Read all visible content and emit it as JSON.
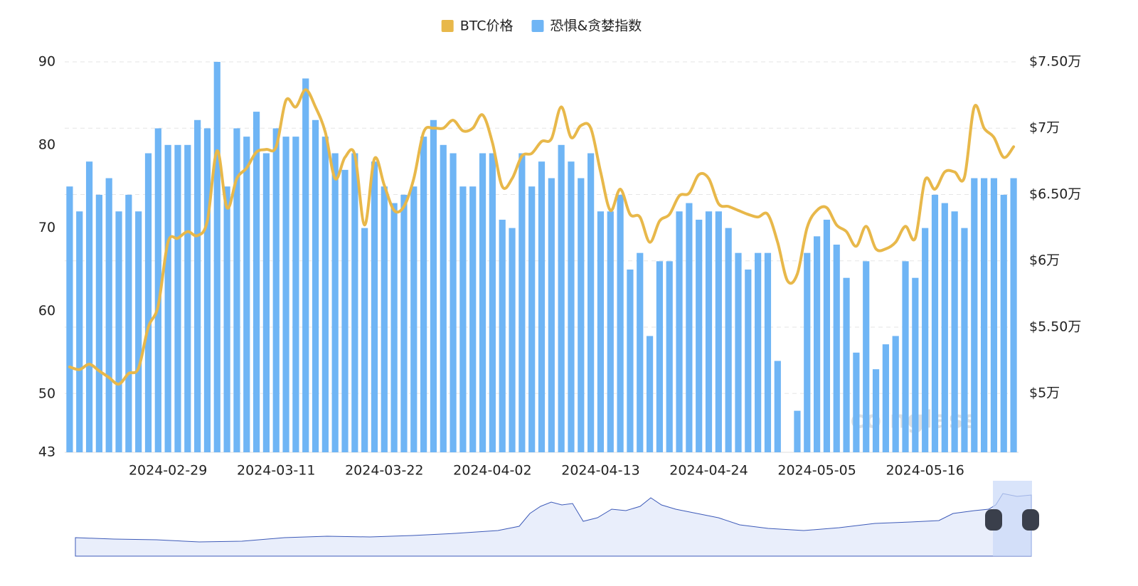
{
  "chart_data": {
    "type": "bar-line",
    "watermark": "coinglass",
    "categories": [
      null,
      null,
      null,
      null,
      null,
      null,
      null,
      null,
      null,
      null,
      "2024-02-29",
      null,
      null,
      null,
      null,
      null,
      null,
      null,
      null,
      null,
      null,
      "2024-03-11",
      null,
      null,
      null,
      null,
      null,
      null,
      null,
      null,
      null,
      null,
      "2024-03-22",
      null,
      null,
      null,
      null,
      null,
      null,
      null,
      null,
      null,
      null,
      "2024-04-02",
      null,
      null,
      null,
      null,
      null,
      null,
      null,
      null,
      null,
      null,
      "2024-04-13",
      null,
      null,
      null,
      null,
      null,
      null,
      null,
      null,
      null,
      null,
      "2024-04-24",
      null,
      null,
      null,
      null,
      null,
      null,
      null,
      null,
      null,
      null,
      "2024-05-05",
      null,
      null,
      null,
      null,
      null,
      null,
      null,
      null,
      null,
      null,
      "2024-05-16",
      null,
      null,
      null,
      null,
      null,
      null,
      null,
      null,
      null
    ],
    "series": [
      {
        "name": "BTC价格",
        "type": "line",
        "axis": "y2",
        "color": "#e8b84a",
        "values": [
          52000,
          51800,
          52200,
          51700,
          51200,
          50700,
          51500,
          51900,
          55000,
          56600,
          61400,
          61700,
          62200,
          61900,
          63000,
          68300,
          64000,
          66200,
          67000,
          68200,
          68400,
          68600,
          72100,
          71600,
          72900,
          71600,
          69700,
          66200,
          67800,
          68000,
          62700,
          67700,
          65700,
          63800,
          64100,
          66200,
          69700,
          70000,
          70000,
          70600,
          69800,
          70000,
          71000,
          68900,
          65600,
          66200,
          67900,
          68100,
          69000,
          69200,
          71600,
          69300,
          70200,
          70000,
          66700,
          63800,
          65400,
          63500,
          63300,
          61400,
          63000,
          63500,
          64900,
          65100,
          66500,
          66200,
          64300,
          64100,
          63800,
          63500,
          63300,
          63500,
          61400,
          58500,
          59000,
          62500,
          63800,
          64000,
          62700,
          62200,
          61100,
          62600,
          60900,
          60900,
          61400,
          62600,
          61700,
          66100,
          65400,
          66700,
          66700,
          66300,
          71600,
          70000,
          69300,
          67800,
          68600
        ]
      },
      {
        "name": "恐惧&贪婪指数",
        "type": "bar",
        "color": "#6fb5f5",
        "values": [
          75,
          72,
          78,
          74,
          76,
          72,
          74,
          72,
          79,
          82,
          80,
          80,
          80,
          83,
          82,
          90,
          75,
          82,
          81,
          84,
          79,
          82,
          81,
          81,
          88,
          83,
          81,
          79,
          77,
          79,
          70,
          78,
          75,
          73,
          74,
          75,
          81,
          83,
          80,
          79,
          75,
          75,
          79,
          79,
          71,
          70,
          79,
          75,
          78,
          76,
          80,
          78,
          76,
          79,
          72,
          72,
          74,
          65,
          67,
          57,
          66,
          66,
          72,
          73,
          71,
          72,
          72,
          70,
          67,
          65,
          67,
          67,
          54,
          null,
          48,
          67,
          69,
          71,
          68,
          64,
          55,
          66,
          53,
          56,
          57,
          66,
          64,
          70,
          74,
          73,
          72,
          70,
          76,
          76,
          76,
          74,
          76
        ]
      }
    ],
    "ylim": [
      43,
      90
    ],
    "yticks": [
      43,
      50,
      60,
      70,
      80,
      90
    ],
    "y2lim": [
      45560,
      75000
    ],
    "y2ticks": [
      {
        "value": 50000,
        "label": "$5万"
      },
      {
        "value": 55000,
        "label": "$5.50万"
      },
      {
        "value": 60000,
        "label": "$6万"
      },
      {
        "value": 65000,
        "label": "$6.50万"
      },
      {
        "value": 70000,
        "label": "$7万"
      },
      {
        "value": 75000,
        "label": "$7.50万"
      }
    ],
    "grid": true,
    "legend": "top"
  }
}
